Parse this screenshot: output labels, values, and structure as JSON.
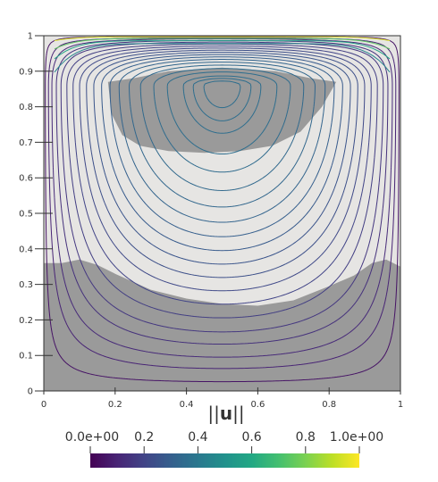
{
  "chart_data": {
    "type": "contour",
    "field_label_prefix": "||",
    "field_label_symbol": "u",
    "field_label_suffix": "||",
    "xlim": [
      0,
      1
    ],
    "ylim": [
      0,
      1
    ],
    "x_ticks": [
      {
        "value": 0,
        "label": "0"
      },
      {
        "value": 0.2,
        "label": "0.2"
      },
      {
        "value": 0.4,
        "label": "0.4"
      },
      {
        "value": 0.6,
        "label": "0.6"
      },
      {
        "value": 0.8,
        "label": "0.8"
      },
      {
        "value": 1,
        "label": "1"
      }
    ],
    "y_ticks": [
      {
        "value": 0,
        "label": "0"
      },
      {
        "value": 0.1,
        "label": "0.1"
      },
      {
        "value": 0.2,
        "label": "0.2"
      },
      {
        "value": 0.3,
        "label": "0.3"
      },
      {
        "value": 0.4,
        "label": "0.4"
      },
      {
        "value": 0.5,
        "label": "0.5"
      },
      {
        "value": 0.6,
        "label": "0.6"
      },
      {
        "value": 0.7,
        "label": "0.7"
      },
      {
        "value": 0.8,
        "label": "0.8"
      },
      {
        "value": 0.9,
        "label": "0.9"
      },
      {
        "value": 1,
        "label": "1"
      }
    ],
    "vortex_center": {
      "x": 0.5,
      "y": 0.86
    },
    "shaded_regions": [
      {
        "name": "lower-region",
        "boundary": [
          [
            0,
            0.36
          ],
          [
            0.05,
            0.36
          ],
          [
            0.1,
            0.37
          ],
          [
            0.15,
            0.355
          ],
          [
            0.2,
            0.33
          ],
          [
            0.3,
            0.285
          ],
          [
            0.4,
            0.26
          ],
          [
            0.5,
            0.245
          ],
          [
            0.6,
            0.24
          ],
          [
            0.7,
            0.255
          ],
          [
            0.8,
            0.295
          ],
          [
            0.87,
            0.325
          ],
          [
            0.92,
            0.36
          ],
          [
            0.96,
            0.37
          ],
          [
            1,
            0.35
          ]
        ]
      },
      {
        "name": "upper-region",
        "upper": [
          [
            0.18,
            0.87
          ],
          [
            0.25,
            0.88
          ],
          [
            0.35,
            0.9
          ],
          [
            0.5,
            0.91
          ],
          [
            0.65,
            0.9
          ],
          [
            0.75,
            0.88
          ],
          [
            0.82,
            0.87
          ]
        ],
        "lower": [
          [
            0.82,
            0.87
          ],
          [
            0.78,
            0.8
          ],
          [
            0.72,
            0.73
          ],
          [
            0.64,
            0.69
          ],
          [
            0.55,
            0.675
          ],
          [
            0.45,
            0.67
          ],
          [
            0.35,
            0.675
          ],
          [
            0.27,
            0.69
          ],
          [
            0.22,
            0.72
          ],
          [
            0.19,
            0.78
          ],
          [
            0.18,
            0.87
          ]
        ]
      }
    ],
    "streamlines": [
      {
        "level": 0.02,
        "value": 0.05
      },
      {
        "level": 0.06,
        "value": 0.1
      },
      {
        "level": 0.1,
        "value": 0.12
      },
      {
        "level": 0.15,
        "value": 0.14
      },
      {
        "level": 0.2,
        "value": 0.16
      },
      {
        "level": 0.26,
        "value": 0.18
      },
      {
        "level": 0.32,
        "value": 0.2
      },
      {
        "level": 0.38,
        "value": 0.22
      },
      {
        "level": 0.44,
        "value": 0.24
      },
      {
        "level": 0.5,
        "value": 0.26
      },
      {
        "level": 0.56,
        "value": 0.28
      },
      {
        "level": 0.62,
        "value": 0.3
      },
      {
        "level": 0.68,
        "value": 0.32
      },
      {
        "level": 0.74,
        "value": 0.33
      },
      {
        "level": 0.8,
        "value": 0.34
      },
      {
        "level": 0.86,
        "value": 0.35
      },
      {
        "level": 0.91,
        "value": 0.36
      },
      {
        "level": 0.955,
        "value": 0.36
      }
    ],
    "lid_lines": [
      {
        "depth": 0.003,
        "value": 0.95
      },
      {
        "depth": 0.008,
        "value": 0.75
      },
      {
        "depth": 0.014,
        "value": 0.58
      },
      {
        "depth": 0.022,
        "value": 0.45
      }
    ],
    "colorbar": {
      "range": [
        0,
        1
      ],
      "colormap": "viridis",
      "ticks": [
        {
          "value": 0,
          "label": "0.0e+00"
        },
        {
          "value": 0.2,
          "label": "0.2"
        },
        {
          "value": 0.4,
          "label": "0.4"
        },
        {
          "value": 0.6,
          "label": "0.6"
        },
        {
          "value": 0.8,
          "label": "0.8"
        },
        {
          "value": 1,
          "label": "1.0e+00"
        }
      ]
    },
    "colors": {
      "background": "#e6e5e3",
      "shaded": "#9a9a9a",
      "frame": "#333333"
    }
  }
}
